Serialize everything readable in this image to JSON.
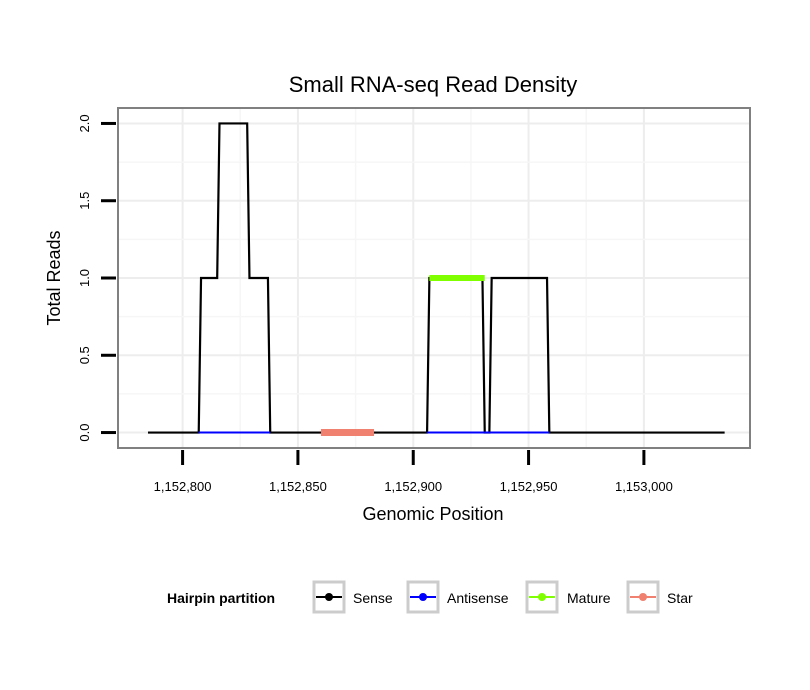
{
  "chart_data": {
    "type": "line",
    "title": "Small RNA-seq Read Density",
    "xlabel": "Genomic Position",
    "ylabel": "Total Reads",
    "xlim": [
      1152772,
      1153046
    ],
    "ylim": [
      -0.1,
      2.1
    ],
    "x_ticks": [
      {
        "value": 1152800,
        "label": "1,152,800"
      },
      {
        "value": 1152850,
        "label": "1,152,850"
      },
      {
        "value": 1152900,
        "label": "1,152,900"
      },
      {
        "value": 1152950,
        "label": "1,152,950"
      },
      {
        "value": 1153000,
        "label": "1,153,000"
      }
    ],
    "y_ticks": [
      {
        "value": 0.0,
        "label": "0.0"
      },
      {
        "value": 0.5,
        "label": "0.5"
      },
      {
        "value": 1.0,
        "label": "1.0"
      },
      {
        "value": 1.5,
        "label": "1.5"
      },
      {
        "value": 2.0,
        "label": "2.0"
      }
    ],
    "grid": true,
    "series": [
      {
        "name": "Sense",
        "color": "#000000",
        "x": [
          1152785,
          1152807,
          1152808,
          1152815,
          1152816,
          1152828,
          1152829,
          1152837,
          1152838,
          1152906,
          1152907,
          1152930,
          1152931,
          1152933,
          1152934,
          1152958,
          1152959,
          1153035
        ],
        "y": [
          0,
          0,
          1,
          1,
          2,
          2,
          1,
          1,
          0,
          0,
          1,
          1,
          0,
          0,
          1,
          1,
          0,
          0
        ]
      },
      {
        "name": "Antisense",
        "color": "#0000ff",
        "x": [
          1152807,
          1152838,
          1152906,
          1152959
        ],
        "y": [
          0,
          0,
          0,
          0
        ],
        "segments": [
          [
            0,
            1
          ],
          [
            2,
            3
          ]
        ]
      },
      {
        "name": "Mature",
        "color": "#7fff00",
        "x": [
          1152907,
          1152931
        ],
        "y": [
          1,
          1
        ]
      },
      {
        "name": "Star",
        "color": "#f08070",
        "x": [
          1152860,
          1152883
        ],
        "y": [
          0,
          0
        ]
      }
    ],
    "legend": {
      "title": "Hairpin partition",
      "position": "bottom",
      "items": [
        {
          "label": "Sense",
          "color": "#000000"
        },
        {
          "label": "Antisense",
          "color": "#0000ff"
        },
        {
          "label": "Mature",
          "color": "#7fff00"
        },
        {
          "label": "Star",
          "color": "#f08070"
        }
      ]
    }
  }
}
